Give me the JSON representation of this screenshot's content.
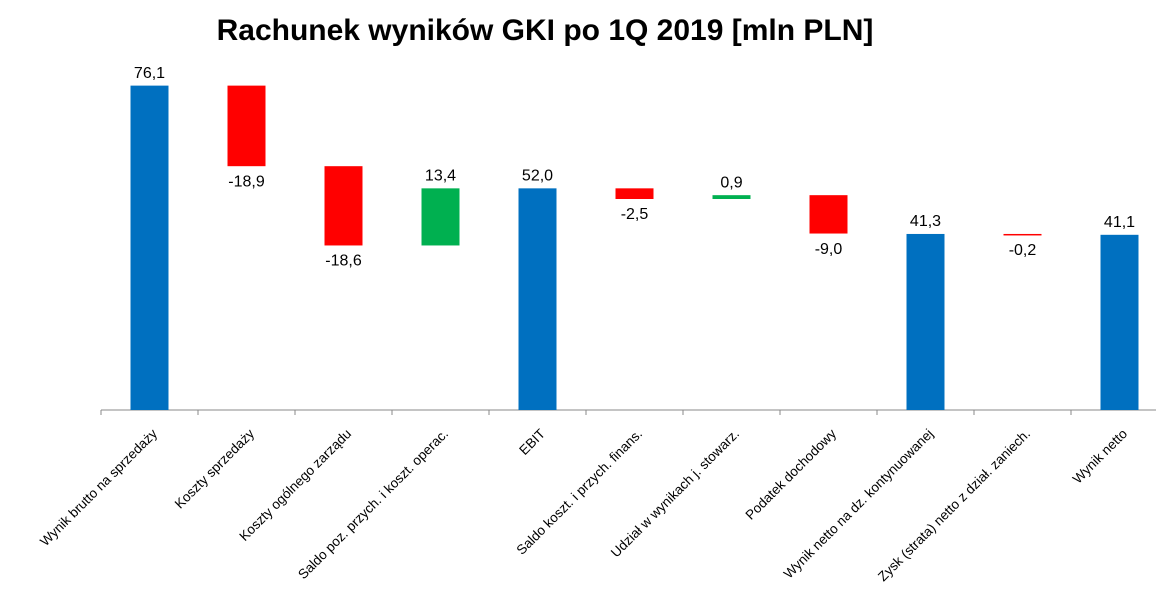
{
  "chart_data": {
    "type": "waterfall",
    "title": "Rachunek wyników GKI po 1Q 2019 [mln PLN]",
    "categories": [
      "Wynik brutto na sprzedaży",
      "Koszty sprzedaży",
      "Koszty ogólnego zarządu",
      "Saldo poz. przych. i koszt. operac.",
      "EBIT",
      "Saldo koszt. i przych. finans.",
      "Udział w wynikach j. stowarz.",
      "Podatek dochodowy",
      "Wynik netto na dz. kontynuowanej",
      "Zysk (strata) netto z dział. zaniech.",
      "Wynik netto"
    ],
    "values": [
      76.1,
      -18.9,
      -18.6,
      13.4,
      52.0,
      -2.5,
      0.9,
      -9.0,
      41.3,
      -0.2,
      41.1
    ],
    "value_labels": [
      "76,1",
      "-18,9",
      "-18,6",
      "13,4",
      "52,0",
      "-2,5",
      "0,9",
      "-9,0",
      "41,3",
      "-0,2",
      "41,1"
    ],
    "measure": [
      "total",
      "relative",
      "relative",
      "relative",
      "total",
      "relative",
      "relative",
      "relative",
      "total",
      "relative",
      "total"
    ],
    "colors": {
      "total": "#0070c0",
      "increase": "#00b050",
      "decrease": "#ff0000"
    },
    "ylim": [
      0,
      80
    ]
  }
}
